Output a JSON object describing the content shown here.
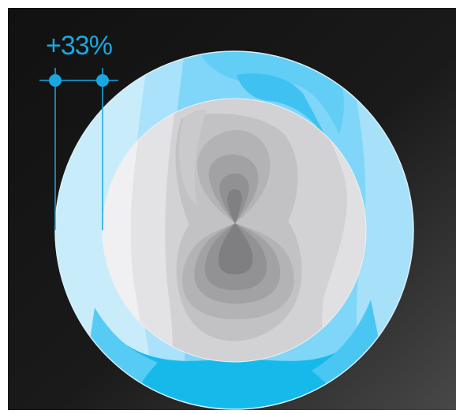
{
  "callout": {
    "label": "+33%",
    "color": "#1aa7e0"
  },
  "colors": {
    "background_top": "#111111",
    "background_bottom": "#474747",
    "outer_disc": "#5ccdf6",
    "outer_disc_light": "#c9ecfb",
    "outer_disc_deep": "#16baea",
    "inner_disc": "#d4d4d6",
    "inner_disc_light": "#f0f0f2",
    "inner_disc_dark": "#7e7e80"
  }
}
